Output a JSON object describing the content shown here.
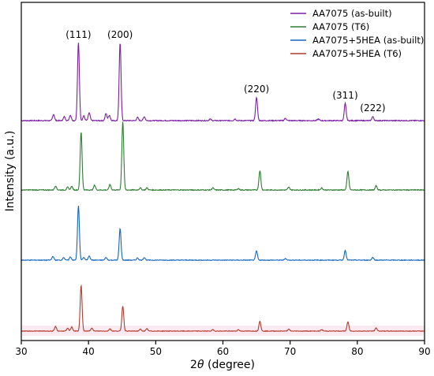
{
  "chart_data": {
    "type": "line",
    "xlabel_prefix": "2",
    "xlabel_symbol": "θ",
    "xlabel_suffix": " (degree)",
    "ylabel": "Intensity (a.u.)",
    "xlim": [
      30,
      90
    ],
    "x_ticks": [
      "30",
      "40",
      "50",
      "60",
      "70",
      "80",
      "90"
    ],
    "legend_position": "top-right",
    "peak_labels": [
      {
        "text": "(111)",
        "x": 38.5
      },
      {
        "text": "(200)",
        "x": 44.7
      },
      {
        "text": "(220)",
        "x": 65.0
      },
      {
        "text": "(311)",
        "x": 78.2
      },
      {
        "text": "(222)",
        "x": 82.3
      }
    ],
    "series": [
      {
        "name": "AA7075 (as-built)",
        "color": "#7b1fa2",
        "peaks": [
          [
            34.8,
            0.08
          ],
          [
            36.4,
            0.05
          ],
          [
            37.3,
            0.07
          ],
          [
            38.5,
            1.0
          ],
          [
            39.3,
            0.06
          ],
          [
            40.1,
            0.1
          ],
          [
            42.6,
            0.09
          ],
          [
            43.1,
            0.07
          ],
          [
            44.7,
            1.0
          ],
          [
            47.3,
            0.04
          ],
          [
            48.3,
            0.05
          ],
          [
            58.1,
            0.02
          ],
          [
            61.8,
            0.02
          ],
          [
            65.0,
            0.3
          ],
          [
            69.3,
            0.03
          ],
          [
            74.2,
            0.02
          ],
          [
            78.2,
            0.22
          ],
          [
            82.3,
            0.05
          ]
        ]
      },
      {
        "name": "AA7075 (T6)",
        "color": "#2e7d32",
        "peaks": [
          [
            35.1,
            0.06
          ],
          [
            36.9,
            0.04
          ],
          [
            37.5,
            0.05
          ],
          [
            38.9,
            0.85
          ],
          [
            40.9,
            0.07
          ],
          [
            43.2,
            0.08
          ],
          [
            45.1,
            1.0
          ],
          [
            47.7,
            0.03
          ],
          [
            48.7,
            0.03
          ],
          [
            58.5,
            0.03
          ],
          [
            62.3,
            0.02
          ],
          [
            65.5,
            0.28
          ],
          [
            69.8,
            0.04
          ],
          [
            74.7,
            0.03
          ],
          [
            78.6,
            0.27
          ],
          [
            82.8,
            0.06
          ]
        ]
      },
      {
        "name": "AA7075+5HEA (as-built)",
        "color": "#1565c0",
        "peaks": [
          [
            34.7,
            0.07
          ],
          [
            36.3,
            0.05
          ],
          [
            37.3,
            0.06
          ],
          [
            38.5,
            1.0
          ],
          [
            39.3,
            0.05
          ],
          [
            40.1,
            0.08
          ],
          [
            42.6,
            0.05
          ],
          [
            44.7,
            0.58
          ],
          [
            47.3,
            0.04
          ],
          [
            48.3,
            0.05
          ],
          [
            65.0,
            0.17
          ],
          [
            69.3,
            0.03
          ],
          [
            78.2,
            0.18
          ],
          [
            82.3,
            0.05
          ]
        ]
      },
      {
        "name": "AA7075+5HEA (T6)",
        "color": "#b23a2a",
        "peaks": [
          [
            35.1,
            0.1
          ],
          [
            36.9,
            0.06
          ],
          [
            37.5,
            0.09
          ],
          [
            38.9,
            1.0
          ],
          [
            40.5,
            0.07
          ],
          [
            43.2,
            0.05
          ],
          [
            45.1,
            0.55
          ],
          [
            47.7,
            0.04
          ],
          [
            48.7,
            0.05
          ],
          [
            58.5,
            0.03
          ],
          [
            62.3,
            0.03
          ],
          [
            65.5,
            0.22
          ],
          [
            69.8,
            0.04
          ],
          [
            74.7,
            0.03
          ],
          [
            78.6,
            0.2
          ],
          [
            82.8,
            0.07
          ]
        ]
      }
    ]
  }
}
